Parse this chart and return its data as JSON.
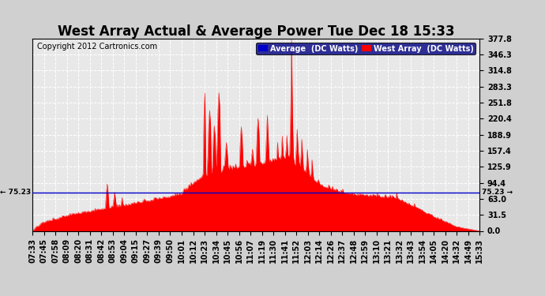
{
  "title": "West Array Actual & Average Power Tue Dec 18 15:33",
  "copyright": "Copyright 2012 Cartronics.com",
  "legend_avg_label": "Average  (DC Watts)",
  "legend_west_label": "West Array  (DC Watts)",
  "avg_value": 75.23,
  "ylim": [
    0,
    377.8
  ],
  "yticks": [
    0.0,
    31.5,
    63.0,
    94.4,
    125.9,
    157.4,
    188.9,
    220.4,
    251.8,
    283.3,
    314.8,
    346.3,
    377.8
  ],
  "bg_color": "#d0d0d0",
  "plot_bg_color": "#e8e8e8",
  "grid_color": "#ffffff",
  "red_color": "#ff0000",
  "blue_color": "#0000cc",
  "title_color": "#000000",
  "xtick_labels": [
    "07:33",
    "07:45",
    "07:58",
    "08:09",
    "08:20",
    "08:31",
    "08:42",
    "08:53",
    "09:04",
    "09:15",
    "09:27",
    "09:39",
    "09:50",
    "10:01",
    "10:12",
    "10:23",
    "10:34",
    "10:45",
    "10:56",
    "11:07",
    "11:19",
    "11:30",
    "11:41",
    "11:52",
    "12:03",
    "12:14",
    "12:26",
    "12:37",
    "12:48",
    "12:59",
    "13:10",
    "13:21",
    "13:32",
    "13:43",
    "13:54",
    "14:05",
    "14:20",
    "14:32",
    "14:49",
    "15:33"
  ],
  "title_fontsize": 12,
  "tick_fontsize": 7,
  "copyright_fontsize": 7,
  "avg_label_fontsize": 7
}
